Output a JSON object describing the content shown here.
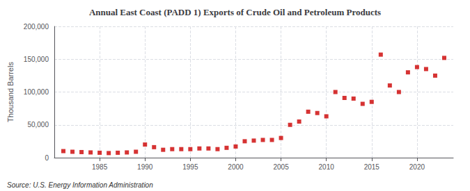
{
  "chart_data": {
    "type": "scatter",
    "title": "Annual East Coast (PADD 1) Exports of Crude Oil and Petroleum Products",
    "ylabel": "Thousand Barrels",
    "annotations": [
      "Source: U.S. Energy Information Administration"
    ],
    "color": "#cc0000",
    "marker": "square",
    "x": [
      1981,
      1982,
      1983,
      1984,
      1985,
      1986,
      1987,
      1988,
      1989,
      1990,
      1991,
      1992,
      1993,
      1994,
      1995,
      1996,
      1997,
      1998,
      1999,
      2000,
      2001,
      2002,
      2003,
      2004,
      2005,
      2006,
      2007,
      2008,
      2009,
      2010,
      2011,
      2012,
      2013,
      2014,
      2015,
      2016,
      2017,
      2018,
      2019,
      2020,
      2021,
      2022,
      2023
    ],
    "values": [
      10000,
      9000,
      8500,
      8000,
      7500,
      7000,
      7500,
      8000,
      9000,
      20000,
      16000,
      12000,
      13000,
      13000,
      13000,
      14000,
      14000,
      13000,
      15000,
      17000,
      25000,
      26000,
      27000,
      27000,
      30000,
      50000,
      55000,
      70000,
      68000,
      63000,
      100000,
      91000,
      90000,
      82000,
      85000,
      157000,
      110000,
      100000,
      130000,
      138000,
      135000,
      125000,
      152000
    ],
    "xlim": [
      1980,
      2024
    ],
    "xticks": [
      1985,
      1990,
      1995,
      2000,
      2005,
      2010,
      2015,
      2020
    ],
    "ylim": [
      0,
      200000
    ],
    "yticks": [
      0,
      {
        "value": 50000,
        "label": "50,000"
      },
      {
        "value": 100000,
        "label": "100,000"
      },
      {
        "value": 150000,
        "label": "150,000"
      },
      {
        "value": 200000,
        "label": "200,000"
      }
    ],
    "grid": true
  }
}
